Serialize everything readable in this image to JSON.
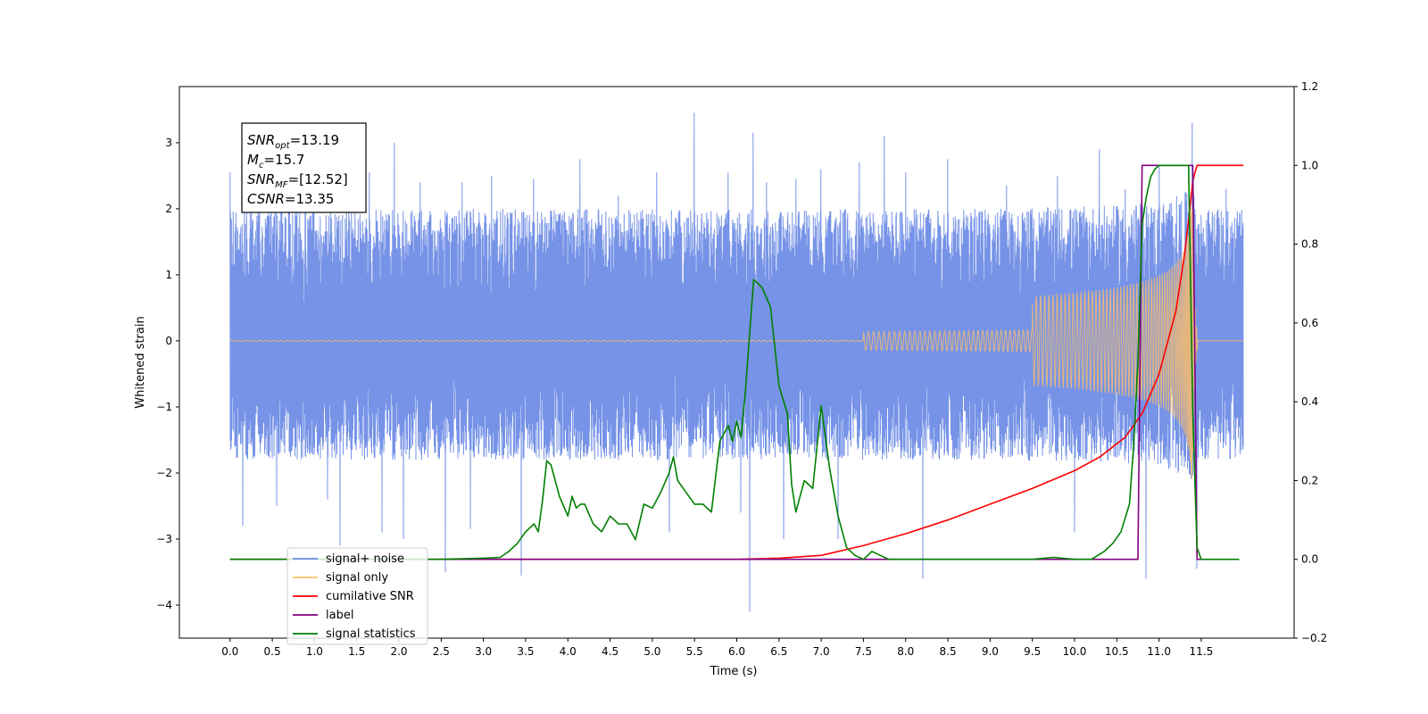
{
  "chart_data": {
    "type": "line",
    "xlabel": "Time (s)",
    "ylabel": "Whitened strain",
    "xlim": [
      -0.6,
      12.6
    ],
    "ylim": [
      -4.5,
      3.85
    ],
    "ylim_right": [
      -0.2,
      1.2
    ],
    "x_ticks": [
      "0.0",
      "0.5",
      "1.0",
      "1.5",
      "2.0",
      "2.5",
      "3.0",
      "3.5",
      "4.0",
      "4.5",
      "5.0",
      "5.5",
      "6.0",
      "6.5",
      "7.0",
      "7.5",
      "8.0",
      "8.5",
      "9.0",
      "9.5",
      "10.0",
      "10.5",
      "11.0",
      "11.5"
    ],
    "y_ticks": [
      "3",
      "2",
      "1",
      "0",
      "−1",
      "−2",
      "−3",
      "−4"
    ],
    "y_ticks_right": [
      "1.2",
      "1.0",
      "0.8",
      "0.6",
      "0.4",
      "0.2",
      "0.0",
      "−0.2"
    ],
    "annotation": {
      "lines": [
        {
          "base": "SNR",
          "sub": "opt",
          "value": "=13.19"
        },
        {
          "base": "M",
          "sub": "c",
          "value": "=15.7"
        },
        {
          "base": "SNR",
          "sub": "MF",
          "value": "=[12.52]"
        },
        {
          "base": "CSNR",
          "sub": "",
          "value": "=13.35"
        }
      ]
    },
    "legend": {
      "placement": "lower-left",
      "entries": [
        {
          "label": "signal+ noise",
          "color": "#6f8de6"
        },
        {
          "label": "signal only",
          "color": "#ffbf66"
        },
        {
          "label": "cumilative SNR",
          "color": "#ff0000"
        },
        {
          "label": "label",
          "color": "#800080"
        },
        {
          "label": "signal statistics",
          "color": "#008000"
        }
      ]
    },
    "series": [
      {
        "name": "signal+ noise",
        "axis": "left",
        "color": "#6f8de6",
        "kind": "noise-band",
        "x_range": [
          0.0,
          12.0
        ],
        "envelope_x": [
          0.0,
          3.0,
          6.0,
          9.0,
          10.5,
          11.0,
          11.4,
          11.45,
          12.0
        ],
        "envelope_upper": [
          2.0,
          2.0,
          2.0,
          2.0,
          2.05,
          2.1,
          2.3,
          2.0,
          2.0
        ],
        "envelope_lower": [
          -1.8,
          -1.8,
          -1.8,
          -1.8,
          -1.85,
          -1.9,
          -2.1,
          -1.8,
          -1.8
        ],
        "spikes": [
          [
            0.0,
            2.55
          ],
          [
            0.05,
            -1.6
          ],
          [
            0.15,
            -2.8
          ],
          [
            0.35,
            2.3
          ],
          [
            0.55,
            -2.5
          ],
          [
            0.8,
            2.3
          ],
          [
            1.0,
            2.5
          ],
          [
            1.15,
            -2.4
          ],
          [
            1.3,
            -3.1
          ],
          [
            1.65,
            2.55
          ],
          [
            1.8,
            -2.9
          ],
          [
            1.95,
            3.0
          ],
          [
            2.05,
            -3.0
          ],
          [
            2.25,
            2.4
          ],
          [
            2.55,
            -3.5
          ],
          [
            2.75,
            2.4
          ],
          [
            2.85,
            -2.85
          ],
          [
            3.1,
            2.5
          ],
          [
            3.45,
            -3.55
          ],
          [
            3.6,
            2.45
          ],
          [
            4.15,
            2.75
          ],
          [
            4.6,
            2.2
          ],
          [
            5.05,
            2.55
          ],
          [
            5.2,
            -2.9
          ],
          [
            5.5,
            3.45
          ],
          [
            5.9,
            2.55
          ],
          [
            6.05,
            -2.6
          ],
          [
            6.15,
            -4.1
          ],
          [
            6.2,
            3.15
          ],
          [
            6.35,
            2.4
          ],
          [
            6.55,
            -3.0
          ],
          [
            6.7,
            2.45
          ],
          [
            7.0,
            2.6
          ],
          [
            7.2,
            -3.0
          ],
          [
            7.45,
            2.7
          ],
          [
            7.75,
            3.1
          ],
          [
            8.0,
            2.55
          ],
          [
            8.2,
            -3.6
          ],
          [
            8.5,
            2.75
          ],
          [
            9.2,
            2.35
          ],
          [
            9.8,
            2.5
          ],
          [
            10.0,
            -2.9
          ],
          [
            10.3,
            2.9
          ],
          [
            10.6,
            2.3
          ],
          [
            10.85,
            -3.6
          ],
          [
            11.0,
            2.65
          ],
          [
            11.4,
            3.3
          ],
          [
            11.45,
            -3.45
          ],
          [
            11.8,
            2.3
          ]
        ]
      },
      {
        "name": "signal only",
        "axis": "left",
        "color": "#ffbf66",
        "kind": "chirp",
        "x_range": [
          0.0,
          12.0
        ],
        "merger_time": 11.4,
        "peak_amplitude": 2.1
      },
      {
        "name": "cumilative SNR",
        "axis": "right",
        "color": "#ff0000",
        "x": [
          0.0,
          6.0,
          6.5,
          7.0,
          7.5,
          8.0,
          8.5,
          9.0,
          9.5,
          10.0,
          10.3,
          10.6,
          10.8,
          11.0,
          11.2,
          11.3,
          11.35,
          11.4,
          11.45,
          12.0
        ],
        "y": [
          0.0,
          0.0,
          0.003,
          0.01,
          0.035,
          0.065,
          0.1,
          0.14,
          0.18,
          0.225,
          0.26,
          0.31,
          0.37,
          0.47,
          0.63,
          0.77,
          0.86,
          0.96,
          1.0,
          1.0
        ]
      },
      {
        "name": "label",
        "axis": "right",
        "color": "#800080",
        "x": [
          0.0,
          10.75,
          10.8,
          11.4,
          11.45,
          11.5
        ],
        "y": [
          0.0,
          0.0,
          1.0,
          1.0,
          0.0,
          0.0
        ]
      },
      {
        "name": "signal statistics",
        "axis": "right",
        "color": "#008000",
        "x": [
          0.0,
          2.5,
          3.0,
          3.2,
          3.3,
          3.4,
          3.5,
          3.6,
          3.65,
          3.7,
          3.75,
          3.8,
          3.9,
          4.0,
          4.05,
          4.1,
          4.15,
          4.2,
          4.3,
          4.4,
          4.5,
          4.6,
          4.7,
          4.8,
          4.9,
          5.0,
          5.1,
          5.2,
          5.25,
          5.3,
          5.4,
          5.5,
          5.6,
          5.7,
          5.8,
          5.9,
          5.95,
          6.0,
          6.05,
          6.1,
          6.2,
          6.3,
          6.4,
          6.5,
          6.6,
          6.65,
          6.7,
          6.8,
          6.9,
          7.0,
          7.1,
          7.2,
          7.3,
          7.4,
          7.5,
          7.6,
          7.7,
          7.8,
          7.9,
          8.0,
          9.0,
          9.5,
          9.75,
          10.0,
          10.2,
          10.35,
          10.45,
          10.55,
          10.65,
          10.7,
          10.75,
          10.8,
          10.85,
          10.9,
          10.95,
          11.0,
          11.1,
          11.35,
          11.4,
          11.45,
          11.5,
          11.6,
          11.95
        ],
        "y": [
          0.0,
          0.0,
          0.003,
          0.005,
          0.02,
          0.04,
          0.07,
          0.09,
          0.07,
          0.15,
          0.25,
          0.24,
          0.16,
          0.11,
          0.16,
          0.13,
          0.14,
          0.14,
          0.09,
          0.07,
          0.11,
          0.09,
          0.09,
          0.05,
          0.14,
          0.13,
          0.17,
          0.22,
          0.26,
          0.2,
          0.17,
          0.14,
          0.14,
          0.12,
          0.3,
          0.34,
          0.3,
          0.35,
          0.31,
          0.42,
          0.71,
          0.69,
          0.64,
          0.44,
          0.37,
          0.19,
          0.12,
          0.2,
          0.18,
          0.39,
          0.23,
          0.11,
          0.03,
          0.01,
          0.0,
          0.02,
          0.01,
          0.0,
          0.0,
          0.0,
          0.0,
          0.0,
          0.005,
          0.0,
          0.0,
          0.02,
          0.04,
          0.07,
          0.14,
          0.29,
          0.5,
          0.85,
          0.92,
          0.97,
          0.99,
          1.0,
          1.0,
          1.0,
          0.37,
          0.03,
          0.0,
          0.0,
          0.0
        ]
      }
    ]
  }
}
